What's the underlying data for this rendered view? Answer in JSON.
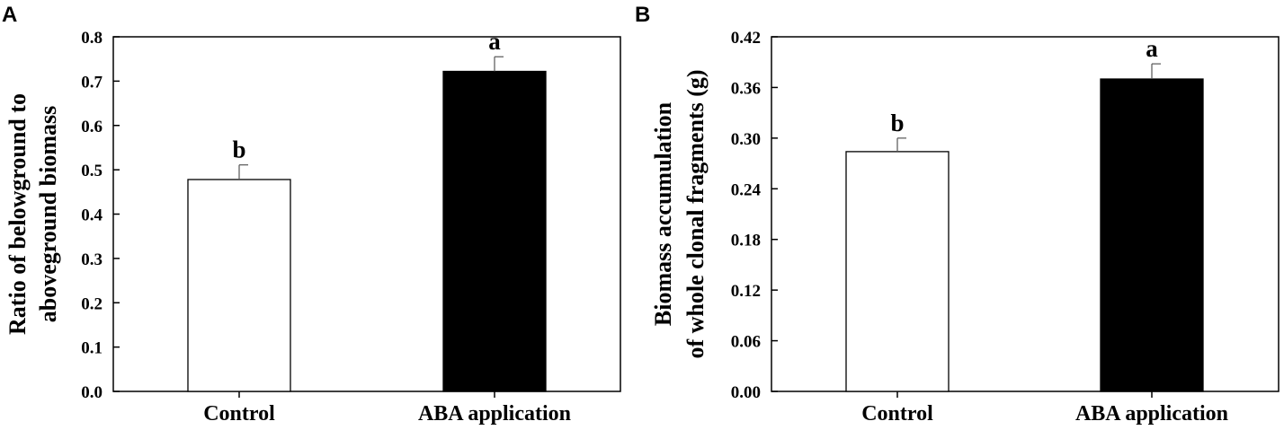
{
  "chart_data": [
    {
      "panel": "A",
      "type": "bar",
      "categories": [
        "Control",
        "ABA application"
      ],
      "values": [
        0.478,
        0.722
      ],
      "errors": [
        0.033,
        0.033
      ],
      "bar_colors": [
        "#ffffff",
        "#000000"
      ],
      "significance": [
        "b",
        "a"
      ],
      "ylabel_lines": [
        "Ratio of belowground to",
        "aboveground biomass"
      ],
      "ylim": [
        0,
        0.8
      ],
      "yticks": [
        0.0,
        0.1,
        0.2,
        0.3,
        0.4,
        0.5,
        0.6,
        0.7,
        0.8
      ],
      "ytick_labels": [
        "0.0",
        "0.1",
        "0.2",
        "0.3",
        "0.4",
        "0.5",
        "0.6",
        "0.7",
        "0.8"
      ],
      "grid": false
    },
    {
      "panel": "B",
      "type": "bar",
      "categories": [
        "Control",
        "ABA application"
      ],
      "values": [
        0.284,
        0.37
      ],
      "errors": [
        0.016,
        0.018
      ],
      "bar_colors": [
        "#ffffff",
        "#000000"
      ],
      "significance": [
        "b",
        "a"
      ],
      "ylabel_lines": [
        "Biomass accumulation",
        "of whole clonal fragments (g)"
      ],
      "ylim": [
        0,
        0.42
      ],
      "yticks": [
        0.0,
        0.06,
        0.12,
        0.18,
        0.24,
        0.3,
        0.36,
        0.42
      ],
      "ytick_labels": [
        "0.00",
        "0.06",
        "0.12",
        "0.18",
        "0.24",
        "0.30",
        "0.36",
        "0.42"
      ],
      "grid": false
    }
  ]
}
